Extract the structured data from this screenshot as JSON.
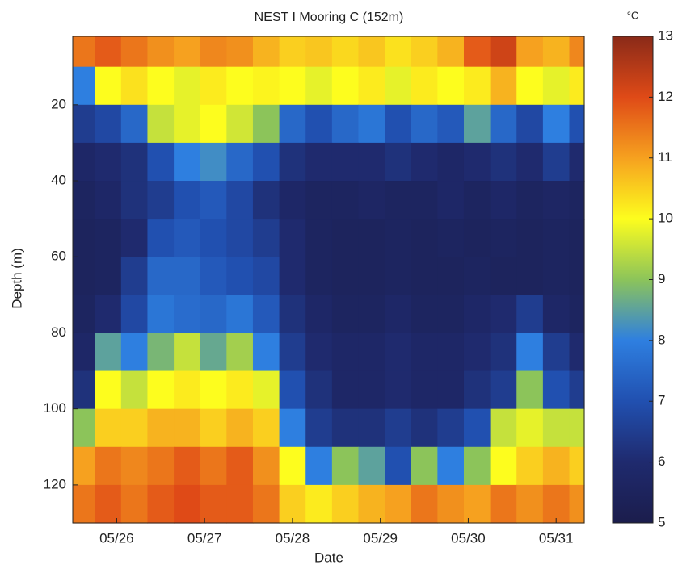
{
  "chart_data": {
    "type": "heatmap",
    "title": "NEST I Mooring C (152m)",
    "xlabel": "Date",
    "ylabel": "Depth (m)",
    "colorbar_label": "°C",
    "x": [
      25.6,
      25.9,
      26.2,
      26.5,
      26.8,
      27.1,
      27.4,
      27.7,
      28.0,
      28.3,
      28.6,
      28.9,
      29.2,
      29.5,
      29.8,
      30.1,
      30.4,
      30.7,
      31.0,
      31.3
    ],
    "y": [
      5,
      15,
      25,
      35,
      45,
      55,
      65,
      75,
      85,
      95,
      105,
      115,
      125
    ],
    "z": [
      [
        11.5,
        11.8,
        11.5,
        11.2,
        11,
        11.3,
        11.2,
        10.8,
        10.5,
        10.6,
        10.4,
        10.6,
        10.3,
        10.5,
        10.8,
        11.8,
        12.2,
        11,
        10.8,
        11.3
      ],
      [
        8,
        10,
        10.3,
        10,
        9.8,
        10.2,
        10,
        10.1,
        10,
        9.8,
        10,
        10.2,
        9.8,
        10.2,
        10,
        10.2,
        10.8,
        10,
        9.8,
        10.2
      ],
      [
        6.5,
        6.8,
        7.5,
        9.5,
        9.8,
        10,
        9.6,
        9,
        7.5,
        7,
        7.5,
        7.8,
        7,
        7.5,
        7.2,
        8.5,
        7.5,
        6.8,
        8,
        7
      ],
      [
        5.8,
        6,
        6.2,
        7,
        8,
        8.2,
        7.5,
        7,
        6.2,
        6,
        6,
        6,
        6.2,
        6,
        5.8,
        6,
        6.2,
        6,
        6.5,
        6
      ],
      [
        5.6,
        5.8,
        6.2,
        6.5,
        7,
        7.2,
        6.8,
        6.2,
        5.8,
        5.6,
        5.6,
        5.7,
        5.6,
        5.6,
        5.8,
        5.6,
        5.8,
        5.6,
        5.7,
        5.6
      ],
      [
        5.5,
        5.6,
        6,
        7,
        7.2,
        7,
        6.8,
        6.5,
        6,
        5.6,
        5.5,
        5.5,
        5.6,
        5.5,
        5.6,
        5.5,
        5.6,
        5.5,
        5.6,
        5.5
      ],
      [
        5.5,
        5.6,
        6.5,
        7.5,
        7.5,
        7.2,
        7,
        6.8,
        6,
        5.6,
        5.5,
        5.5,
        5.6,
        5.5,
        5.5,
        5.6,
        5.5,
        5.5,
        5.6,
        5.5
      ],
      [
        5.6,
        6,
        6.8,
        7.8,
        7.6,
        7.5,
        7.8,
        7.2,
        6.2,
        5.8,
        5.6,
        5.6,
        5.8,
        5.6,
        5.6,
        5.8,
        6,
        6.5,
        5.8,
        5.6
      ],
      [
        5.8,
        8.5,
        8,
        8.8,
        9.5,
        8.6,
        9.2,
        8,
        6.5,
        6,
        5.8,
        5.8,
        6,
        5.8,
        5.8,
        6,
        6.2,
        8,
        6.5,
        6
      ],
      [
        6.2,
        10,
        9.5,
        10,
        10.2,
        10,
        10.2,
        9.8,
        7,
        6.2,
        5.8,
        5.8,
        6,
        5.8,
        5.8,
        6.2,
        6.5,
        9,
        7,
        6.5
      ],
      [
        9,
        10.5,
        10.5,
        10.8,
        10.8,
        10.5,
        10.8,
        10.5,
        8,
        6.5,
        6.2,
        6.2,
        6.5,
        6.2,
        6.5,
        7,
        9.5,
        9.8,
        9.5,
        9.5
      ],
      [
        11,
        11.5,
        11.3,
        11.5,
        11.8,
        11.5,
        11.8,
        11.2,
        10,
        8,
        9,
        8.5,
        7,
        9,
        8,
        9,
        10,
        10.5,
        10.8,
        10.5
      ],
      [
        11.5,
        11.8,
        11.5,
        11.8,
        12,
        11.8,
        11.8,
        11.5,
        10.5,
        10.2,
        10.5,
        10.8,
        11,
        11.5,
        11.2,
        11,
        11.5,
        11.2,
        11.5,
        11.2
      ]
    ],
    "xlim": [
      25.5,
      31.32
    ],
    "xticks": [
      {
        "value": 26,
        "label": "05/26"
      },
      {
        "value": 27,
        "label": "05/27"
      },
      {
        "value": 28,
        "label": "05/28"
      },
      {
        "value": 29,
        "label": "05/29"
      },
      {
        "value": 30,
        "label": "05/30"
      },
      {
        "value": 31,
        "label": "05/31"
      }
    ],
    "ylim": [
      2,
      130
    ],
    "y_reversed": true,
    "yticks": [
      20,
      40,
      60,
      80,
      100,
      120
    ],
    "clim": [
      5,
      13
    ],
    "cticks": [
      5,
      6,
      7,
      8,
      9,
      10,
      11,
      12,
      13
    ],
    "colormap": [
      "#1b1d4c",
      "#1f2a6e",
      "#2150b0",
      "#2e7fe0",
      "#8cc45a",
      "#fdfd1e",
      "#f6a11f",
      "#df4a17",
      "#8a2a18"
    ]
  }
}
